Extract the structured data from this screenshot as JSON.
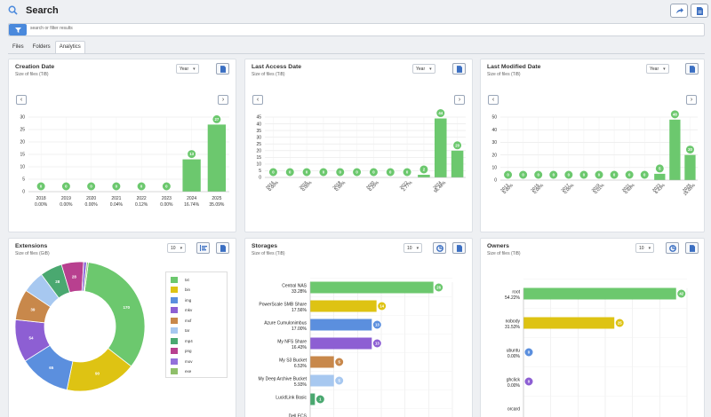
{
  "header": {
    "title": "Search",
    "icons": {
      "search": "search-icon",
      "share": "share-icon",
      "export": "document-icon"
    }
  },
  "filter": {
    "placeholder": "search or filter results",
    "icon": "filter-icon"
  },
  "tabs": [
    {
      "label": "Files",
      "active": false
    },
    {
      "label": "Folders",
      "active": false
    },
    {
      "label": "Analytics",
      "active": true
    }
  ],
  "colors": {
    "accent": "#4a89dc",
    "bar_green": "#6cc86e"
  },
  "panels": {
    "creation": {
      "title": "Creation Date",
      "subtitle": "Size of files (TiB)",
      "select": "Year"
    },
    "access": {
      "title": "Last Access Date",
      "subtitle": "Size of files (TiB)",
      "select": "Year"
    },
    "modified": {
      "title": "Last Modified Date",
      "subtitle": "Size of files (TiB)",
      "select": "Year"
    },
    "extensions": {
      "title": "Extensions",
      "subtitle": "Size of files (GiB)",
      "select": "10"
    },
    "storages": {
      "title": "Storages",
      "subtitle": "Size of files (TiB)",
      "select": "10"
    },
    "owners": {
      "title": "Owners",
      "subtitle": "Size of files (TiB)",
      "select": "10"
    }
  },
  "chart_data": [
    {
      "id": "creation",
      "type": "bar",
      "title": "Creation Date",
      "subtitle": "Size of files (TiB)",
      "categories": [
        "2018",
        "2019",
        "2020",
        "2021",
        "2022",
        "2023",
        "2024",
        "2025"
      ],
      "percent_labels": [
        "0.00%",
        "0.00%",
        "0.00%",
        "0.04%",
        "0.12%",
        "0.00%",
        "16.74%",
        "35.09%"
      ],
      "values": [
        0,
        0,
        0,
        0,
        0,
        0,
        13,
        27
      ],
      "value_labels": [
        "0",
        "0",
        "0",
        "0",
        "0",
        "0",
        "13",
        "27"
      ],
      "ylim": [
        0,
        30
      ],
      "yticks": [
        0,
        5,
        10,
        15,
        20,
        25,
        30
      ],
      "grid": true,
      "color": "#6cc86e"
    },
    {
      "id": "access",
      "type": "bar",
      "title": "Last Access Date",
      "subtitle": "Size of files (TiB)",
      "categories": [
        "2014",
        "",
        "2016",
        "",
        "2018",
        "",
        "2020",
        "",
        "2022",
        "",
        "2024",
        ""
      ],
      "percent_labels": [
        "0.00%",
        "",
        "0.00%",
        "",
        "0.00%",
        "",
        "0.25%",
        "",
        "2.77%",
        "",
        "56.48%",
        ""
      ],
      "values": [
        0,
        0,
        0,
        0,
        0,
        0,
        0,
        0,
        0,
        2,
        44,
        20
      ],
      "value_labels": [
        "0",
        "0",
        "0",
        "0",
        "0",
        "0",
        "0",
        "0",
        "0",
        "2",
        "44",
        "20"
      ],
      "ylim": [
        0,
        45
      ],
      "yticks": [
        0,
        5,
        10,
        15,
        20,
        25,
        30,
        35,
        40,
        45
      ],
      "grid": true,
      "color": "#6cc86e"
    },
    {
      "id": "modified",
      "type": "bar",
      "title": "Last Modified Date",
      "subtitle": "Size of files (TiB)",
      "categories": [
        "2013",
        "",
        "2015",
        "",
        "2017",
        "",
        "2019",
        "",
        "2021",
        "",
        "2023",
        "",
        "2025"
      ],
      "percent_labels": [
        "0.00%",
        "",
        "0.00%",
        "",
        "0.00%",
        "",
        "0.01%",
        "",
        "0.69%",
        "",
        "6.43%",
        "",
        "25.05%"
      ],
      "values": [
        0,
        0,
        0,
        0,
        0,
        0,
        0,
        0,
        0,
        0,
        5,
        48,
        20
      ],
      "value_labels": [
        "0",
        "0",
        "0",
        "0",
        "0",
        "0",
        "0",
        "0",
        "0",
        "0",
        "5",
        "48",
        "20"
      ],
      "ylim": [
        0,
        50
      ],
      "yticks": [
        0,
        10,
        20,
        30,
        40,
        50
      ],
      "grid": true,
      "color": "#6cc86e"
    },
    {
      "id": "extensions",
      "type": "pie",
      "title": "Extensions",
      "subtitle": "Size of files (GiB)",
      "labels": [
        "txt",
        "bin",
        "img",
        "mkv",
        "mxf",
        "tar",
        "mp4",
        "png",
        "mov",
        "exe"
      ],
      "values": [
        170,
        90,
        65,
        54,
        39,
        28,
        28,
        28,
        4,
        2
      ],
      "value_labels": [
        "170",
        "90",
        "65",
        "54",
        "39",
        "",
        "28",
        "28",
        "",
        ""
      ],
      "colors": [
        "#6cc86e",
        "#dec313",
        "#5b8fde",
        "#8d5fd3",
        "#c8884b",
        "#a7c8f0",
        "#4aa870",
        "#b8408f",
        "#9370db",
        "#8fbf6a"
      ],
      "legend": "right"
    },
    {
      "id": "storages",
      "type": "bar",
      "orientation": "horizontal",
      "title": "Storages",
      "subtitle": "Size of files (TiB)",
      "categories": [
        "Central NAS",
        "PowerScale SMB Share",
        "Azure Cumulonimbus",
        "My NFS Share",
        "My S3 Bucket",
        "My Deep Archive Bucket",
        "LucidLink Basic",
        "Dell ECS"
      ],
      "percent_labels": [
        "33.28%",
        "17.56%",
        "17.00%",
        "16.43%",
        "6.53%",
        "5.93%",
        "",
        ""
      ],
      "values": [
        26,
        14,
        13,
        13,
        5,
        5,
        1,
        0
      ],
      "value_labels": [
        "26",
        "14",
        "13",
        "13",
        "5",
        "5",
        "1",
        ""
      ],
      "colors": [
        "#6cc86e",
        "#dec313",
        "#5b8fde",
        "#8d5fd3",
        "#c8884b",
        "#a7c8f0",
        "#4aa870",
        "#b8408f"
      ],
      "xlim": [
        0,
        30
      ]
    },
    {
      "id": "owners",
      "type": "bar",
      "orientation": "horizontal",
      "title": "Owners",
      "subtitle": "Size of files (TiB)",
      "categories": [
        "root",
        "nobody",
        "ubuntu",
        "ghclick",
        "orcard"
      ],
      "percent_labels": [
        "54.22%",
        "31.53%",
        "0.00%",
        "0.00%",
        ""
      ],
      "values": [
        42,
        25,
        0,
        0,
        0
      ],
      "value_labels": [
        "42",
        "25",
        "0",
        "0",
        ""
      ],
      "colors": [
        "#6cc86e",
        "#dec313",
        "#5b8fde",
        "#8d5fd3",
        "#c8884b"
      ],
      "xlim": [
        0,
        45
      ]
    }
  ]
}
